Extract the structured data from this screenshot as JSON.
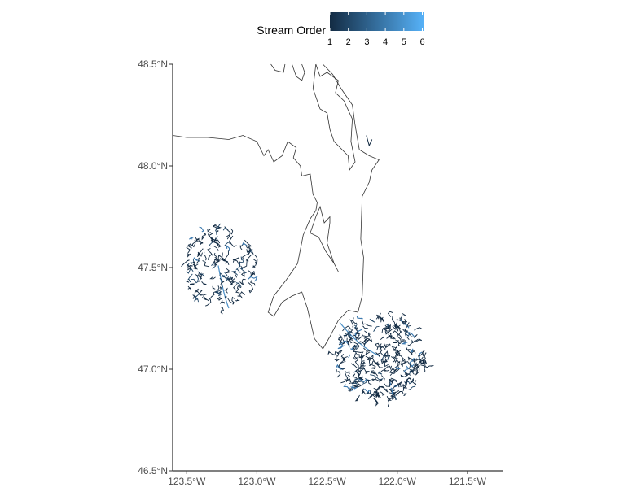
{
  "chart_data": {
    "type": "map",
    "legend": {
      "title": "Stream Order",
      "breaks": [
        "1",
        "2",
        "3",
        "4",
        "5",
        "6"
      ],
      "color_low": "#132b43",
      "color_high": "#56b1f7",
      "placement": "top"
    },
    "x_ticks": [
      {
        "value": -123.5,
        "label": "123.5°W"
      },
      {
        "value": -123.0,
        "label": "123.0°W"
      },
      {
        "value": -122.5,
        "label": "122.5°W"
      },
      {
        "value": -122.0,
        "label": "122.0°W"
      },
      {
        "value": -121.5,
        "label": "121.5°W"
      }
    ],
    "y_ticks": [
      {
        "value": 46.5,
        "label": "46.5°N"
      },
      {
        "value": 47.0,
        "label": "47.0°N"
      },
      {
        "value": 47.5,
        "label": "47.5°N"
      },
      {
        "value": 48.0,
        "label": "48.0°N"
      },
      {
        "value": 48.5,
        "label": "48.5°N"
      }
    ],
    "xlim": [
      -123.6,
      -121.25
    ],
    "ylim": [
      46.5,
      48.5
    ],
    "grid": false,
    "coastline": [
      [
        [
          -123.6,
          48.15
        ],
        [
          -123.5,
          48.14
        ],
        [
          -123.35,
          48.14
        ],
        [
          -123.2,
          48.13
        ],
        [
          -123.1,
          48.15
        ],
        [
          -123.0,
          48.12
        ],
        [
          -122.95,
          48.05
        ],
        [
          -122.92,
          48.08
        ],
        [
          -122.88,
          48.02
        ],
        [
          -122.82,
          48.05
        ],
        [
          -122.78,
          48.12
        ],
        [
          -122.72,
          48.09
        ],
        [
          -122.74,
          48.04
        ],
        [
          -122.69,
          48.0
        ],
        [
          -122.68,
          47.95
        ],
        [
          -122.62,
          47.96
        ],
        [
          -122.6,
          47.86
        ],
        [
          -122.57,
          47.82
        ],
        [
          -122.58,
          47.78
        ],
        [
          -122.62,
          47.74
        ],
        [
          -122.67,
          47.66
        ],
        [
          -122.71,
          47.52
        ],
        [
          -122.79,
          47.44
        ],
        [
          -122.88,
          47.36
        ],
        [
          -122.92,
          47.28
        ],
        [
          -122.88,
          47.26
        ],
        [
          -122.82,
          47.33
        ],
        [
          -122.75,
          47.36
        ],
        [
          -122.68,
          47.38
        ],
        [
          -122.64,
          47.3
        ],
        [
          -122.59,
          47.15
        ],
        [
          -122.53,
          47.1
        ],
        [
          -122.48,
          47.16
        ],
        [
          -122.42,
          47.24
        ],
        [
          -122.35,
          47.29
        ],
        [
          -122.28,
          47.28
        ],
        [
          -122.25,
          47.36
        ],
        [
          -122.24,
          47.55
        ],
        [
          -122.26,
          47.64
        ],
        [
          -122.25,
          47.85
        ],
        [
          -122.2,
          47.92
        ],
        [
          -122.18,
          47.98
        ],
        [
          -122.13,
          48.03
        ],
        [
          -122.2,
          48.05
        ],
        [
          -122.27,
          48.08
        ],
        [
          -122.3,
          48.2
        ],
        [
          -122.32,
          48.3
        ],
        [
          -122.4,
          48.38
        ],
        [
          -122.46,
          48.45
        ],
        [
          -122.53,
          48.5
        ]
      ],
      [
        [
          -122.58,
          48.5
        ],
        [
          -122.55,
          48.44
        ],
        [
          -122.5,
          48.46
        ],
        [
          -122.42,
          48.42
        ],
        [
          -122.44,
          48.36
        ],
        [
          -122.38,
          48.32
        ],
        [
          -122.32,
          48.23
        ],
        [
          -122.33,
          48.12
        ],
        [
          -122.3,
          48.02
        ],
        [
          -122.34,
          47.98
        ],
        [
          -122.35,
          48.05
        ],
        [
          -122.45,
          48.12
        ],
        [
          -122.48,
          48.18
        ],
        [
          -122.5,
          48.26
        ],
        [
          -122.55,
          48.28
        ],
        [
          -122.6,
          48.38
        ],
        [
          -122.58,
          48.5
        ]
      ],
      [
        [
          -122.75,
          48.5
        ],
        [
          -122.72,
          48.44
        ],
        [
          -122.68,
          48.42
        ],
        [
          -122.66,
          48.46
        ],
        [
          -122.68,
          48.5
        ]
      ],
      [
        [
          -122.9,
          48.5
        ],
        [
          -122.87,
          48.47
        ],
        [
          -122.81,
          48.46
        ],
        [
          -122.8,
          48.5
        ]
      ],
      [
        [
          -122.42,
          47.48
        ],
        [
          -122.45,
          47.52
        ],
        [
          -122.51,
          47.58
        ],
        [
          -122.56,
          47.65
        ],
        [
          -122.62,
          47.67
        ],
        [
          -122.58,
          47.75
        ],
        [
          -122.55,
          47.8
        ],
        [
          -122.52,
          47.72
        ],
        [
          -122.48,
          47.75
        ],
        [
          -122.48,
          47.72
        ],
        [
          -122.5,
          47.62
        ],
        [
          -122.45,
          47.52
        ],
        [
          -122.42,
          47.48
        ]
      ]
    ],
    "river_networks": [
      {
        "name": "west",
        "x_range": [
          -123.55,
          -123.0
        ],
        "y_range": [
          47.3,
          47.72
        ],
        "outlet": [
          -123.2,
          47.3
        ]
      },
      {
        "name": "east",
        "x_range": [
          -122.45,
          -121.8
        ],
        "y_range": [
          46.85,
          47.28
        ],
        "outlet": [
          -122.41,
          47.23
        ]
      }
    ]
  }
}
